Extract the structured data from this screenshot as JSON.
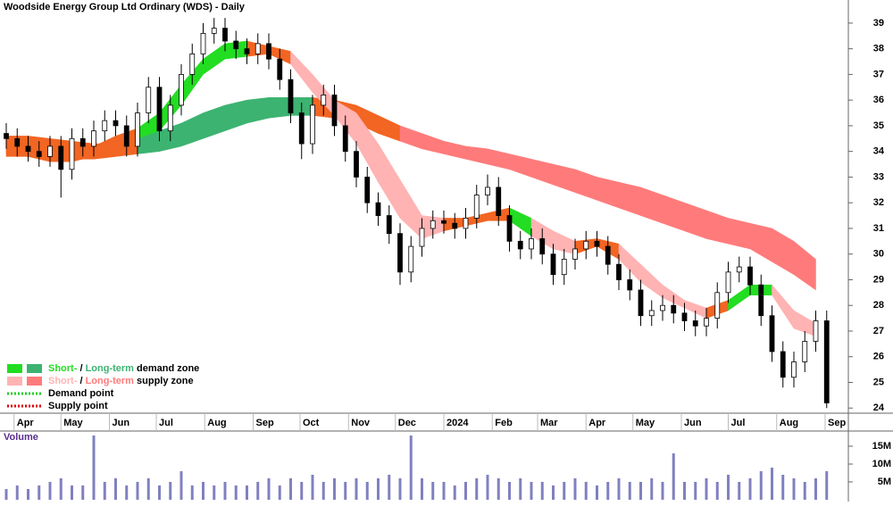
{
  "chart_data": [
    {
      "type": "candlestick",
      "title": "Woodside Energy Group Ltd Ordinary (WDS) - Daily",
      "x": [
        0,
        7,
        14,
        21,
        28,
        35,
        42,
        49,
        56,
        63,
        70,
        77,
        84,
        91,
        98,
        105,
        112,
        119,
        126,
        133,
        140,
        147,
        154,
        161,
        168,
        175,
        182,
        189,
        196,
        203,
        210,
        217,
        224,
        231,
        238,
        245,
        252,
        259,
        266,
        273,
        280,
        287,
        294,
        301,
        308,
        315,
        322,
        329,
        336,
        343,
        350,
        357,
        364,
        371,
        378,
        385,
        392,
        399,
        406,
        413,
        420,
        427,
        434,
        441,
        448,
        455,
        462,
        469,
        476,
        483,
        490,
        497,
        504,
        511,
        518,
        525
      ],
      "open": [
        34.7,
        34.5,
        34.2,
        34.0,
        33.8,
        34.2,
        33.3,
        34.5,
        34.2,
        34.8,
        35.2,
        35.0,
        34.2,
        35.5,
        36.5,
        34.8,
        35.8,
        37.0,
        37.8,
        38.6,
        38.8,
        38.3,
        38.0,
        37.8,
        38.2,
        37.6,
        36.8,
        35.5,
        34.3,
        35.8,
        36.2,
        35.0,
        34.0,
        33.0,
        32.0,
        31.5,
        30.8,
        29.3,
        30.3,
        31.0,
        31.3,
        31.2,
        31.0,
        31.4,
        32.3,
        32.6,
        31.5,
        30.5,
        30.2,
        30.6,
        30.0,
        29.2,
        29.8,
        30.2,
        30.5,
        30.3,
        29.6,
        29.0,
        28.6,
        27.6,
        27.8,
        28.0,
        27.7,
        27.4,
        27.2,
        27.5,
        28.5,
        29.3,
        29.5,
        28.8,
        27.6,
        26.2,
        25.2,
        25.8,
        26.6,
        27.4
      ],
      "high": [
        35.1,
        34.9,
        34.6,
        34.4,
        34.6,
        34.6,
        34.9,
        34.9,
        35.2,
        35.6,
        35.6,
        35.4,
        35.9,
        36.9,
        36.9,
        36.2,
        37.4,
        38.2,
        39.0,
        39.2,
        39.2,
        38.7,
        38.4,
        38.6,
        38.6,
        38.0,
        37.2,
        35.9,
        36.2,
        36.6,
        36.6,
        35.4,
        34.4,
        33.4,
        32.4,
        31.9,
        31.2,
        30.7,
        31.4,
        31.7,
        31.7,
        31.6,
        31.8,
        32.7,
        33.1,
        33.0,
        31.9,
        30.9,
        31.0,
        31.0,
        30.4,
        30.2,
        30.6,
        30.9,
        30.9,
        30.7,
        30.0,
        29.4,
        29.0,
        28.2,
        28.4,
        28.4,
        28.1,
        27.8,
        27.9,
        28.9,
        29.7,
        29.9,
        29.9,
        29.2,
        28.0,
        26.6,
        26.2,
        27.0,
        27.8,
        27.8
      ],
      "low": [
        34.1,
        33.8,
        33.6,
        33.4,
        33.4,
        32.2,
        32.9,
        33.8,
        33.8,
        34.4,
        34.6,
        33.8,
        33.8,
        35.1,
        34.4,
        34.4,
        35.4,
        36.6,
        37.4,
        38.2,
        37.9,
        37.6,
        37.4,
        37.4,
        37.2,
        36.4,
        35.1,
        33.7,
        33.9,
        35.4,
        34.6,
        33.6,
        32.6,
        31.6,
        31.1,
        30.4,
        28.8,
        28.9,
        29.9,
        30.6,
        30.8,
        30.6,
        30.6,
        31.0,
        31.9,
        31.1,
        30.1,
        29.8,
        29.8,
        29.6,
        28.8,
        28.8,
        29.4,
        29.8,
        29.9,
        29.2,
        28.6,
        28.2,
        27.2,
        27.2,
        27.4,
        27.3,
        27.0,
        26.8,
        26.8,
        27.1,
        28.1,
        28.9,
        28.4,
        27.2,
        25.8,
        24.8,
        24.8,
        25.4,
        26.2,
        24.0
      ],
      "close": [
        34.5,
        34.2,
        34.0,
        33.8,
        34.2,
        33.3,
        34.5,
        34.2,
        34.8,
        35.2,
        35.0,
        34.2,
        35.5,
        36.5,
        34.8,
        35.8,
        37.0,
        37.8,
        38.6,
        38.8,
        38.3,
        38.0,
        37.8,
        38.2,
        37.6,
        36.8,
        35.5,
        34.3,
        35.8,
        36.2,
        35.0,
        34.0,
        33.0,
        32.0,
        31.5,
        30.8,
        29.3,
        30.3,
        31.0,
        31.3,
        31.2,
        31.0,
        31.4,
        32.3,
        32.6,
        31.5,
        30.5,
        30.2,
        30.6,
        30.0,
        29.2,
        29.8,
        30.2,
        30.5,
        30.3,
        29.6,
        29.0,
        28.6,
        27.6,
        27.8,
        28.0,
        27.7,
        27.4,
        27.2,
        27.5,
        28.5,
        29.3,
        29.5,
        28.8,
        27.6,
        26.2,
        25.2,
        25.8,
        26.6,
        27.4,
        24.2
      ],
      "band_x": [
        0,
        14,
        28,
        42,
        56,
        70,
        84,
        98,
        112,
        126,
        140,
        154,
        168,
        182,
        196,
        210,
        224,
        238,
        252,
        266,
        280,
        294,
        308,
        322,
        336,
        350,
        364,
        378,
        392,
        406,
        420,
        434,
        448,
        462,
        476,
        490,
        504,
        518
      ],
      "long_lo": [
        33.8,
        33.8,
        33.7,
        33.7,
        33.7,
        33.8,
        33.9,
        34.0,
        34.2,
        34.5,
        34.8,
        35.1,
        35.3,
        35.4,
        35.4,
        35.3,
        35.1,
        34.7,
        34.4,
        34.1,
        33.9,
        33.7,
        33.5,
        33.3,
        33.0,
        32.7,
        32.4,
        32.1,
        31.8,
        31.5,
        31.2,
        30.9,
        30.6,
        30.4,
        30.2,
        29.7,
        29.2,
        28.6
      ],
      "long_hi": [
        34.6,
        34.6,
        34.5,
        34.4,
        34.3,
        34.3,
        34.5,
        34.8,
        35.1,
        35.5,
        35.8,
        36.0,
        36.1,
        36.1,
        36.1,
        36.0,
        35.8,
        35.4,
        35.0,
        34.7,
        34.4,
        34.2,
        34.1,
        33.9,
        33.7,
        33.5,
        33.3,
        33.0,
        32.8,
        32.6,
        32.3,
        32.0,
        31.7,
        31.4,
        31.2,
        31.0,
        30.5,
        29.8
      ],
      "long_colors": [
        "#f26522",
        "#f26522",
        "#f26522",
        "#f26522",
        "#f26522",
        "#f26522",
        "#3cb371",
        "#3cb371",
        "#3cb371",
        "#3cb371",
        "#3cb371",
        "#3cb371",
        "#3cb371",
        "#3cb371",
        "#f26522",
        "#f26522",
        "#f26522",
        "#f26522",
        "#ff7b7b",
        "#ff7b7b",
        "#ff7b7b",
        "#ff7b7b",
        "#ff7b7b",
        "#ff7b7b",
        "#ff7b7b",
        "#ff7b7b",
        "#ff7b7b",
        "#ff7b7b",
        "#ff7b7b",
        "#ff7b7b",
        "#ff7b7b",
        "#ff7b7b",
        "#ff7b7b",
        "#ff7b7b",
        "#ff7b7b",
        "#ff7b7b",
        "#ff7b7b",
        "#ff7b7b"
      ],
      "short_lo": [
        33.9,
        33.8,
        33.6,
        33.6,
        33.8,
        34.2,
        34.5,
        34.8,
        35.8,
        37.0,
        37.6,
        37.7,
        37.8,
        37.4,
        36.3,
        35.4,
        34.3,
        32.8,
        31.4,
        30.6,
        30.9,
        31.1,
        31.3,
        31.3,
        30.7,
        30.2,
        30.0,
        30.3,
        29.8,
        28.9,
        28.3,
        27.9,
        27.5,
        27.8,
        28.4,
        28.4,
        27.1,
        26.8
      ],
      "short_hi": [
        34.6,
        34.4,
        34.2,
        34.0,
        34.2,
        34.6,
        34.9,
        35.5,
        36.6,
        37.6,
        38.2,
        38.3,
        38.1,
        37.9,
        37.0,
        36.0,
        35.5,
        34.3,
        32.9,
        31.5,
        31.4,
        31.4,
        31.6,
        31.8,
        31.4,
        30.9,
        30.5,
        30.6,
        30.4,
        29.6,
        28.8,
        28.2,
        27.9,
        28.2,
        28.8,
        28.8,
        27.8,
        27.3
      ],
      "short_colors": [
        "#f26522",
        "#f26522",
        "#f26522",
        "#f26522",
        "#f26522",
        "#f26522",
        "#22dd22",
        "#22dd22",
        "#22dd22",
        "#22dd22",
        "#22dd22",
        "#f26522",
        "#f26522",
        "#ffb3b3",
        "#ffb3b3",
        "#ffb3b3",
        "#ffb3b3",
        "#ffb3b3",
        "#ffb3b3",
        "#ffb3b3",
        "#f26522",
        "#f26522",
        "#f26522",
        "#22dd22",
        "#ffb3b3",
        "#ffb3b3",
        "#f26522",
        "#f26522",
        "#ffb3b3",
        "#ffb3b3",
        "#ffb3b3",
        "#ffb3b3",
        "#f26522",
        "#22dd22",
        "#22dd22",
        "#ffb3b3",
        "#ffb3b3",
        "#f26522"
      ],
      "xlim": [
        -4,
        536
      ],
      "ylim": [
        23.8,
        39.9
      ],
      "yticks": [
        24,
        25,
        26,
        27,
        28,
        29,
        30,
        31,
        32,
        33,
        34,
        35,
        36,
        37,
        38,
        39
      ],
      "xticks": [
        {
          "value": 5,
          "label": "Apr"
        },
        {
          "value": 35,
          "label": "May"
        },
        {
          "value": 66,
          "label": "Jun"
        },
        {
          "value": 96,
          "label": "Jul"
        },
        {
          "value": 127,
          "label": "Aug"
        },
        {
          "value": 158,
          "label": "Sep"
        },
        {
          "value": 188,
          "label": "Oct"
        },
        {
          "value": 219,
          "label": "Nov"
        },
        {
          "value": 249,
          "label": "Dec"
        },
        {
          "value": 280,
          "label": "2024"
        },
        {
          "value": 311,
          "label": "Feb"
        },
        {
          "value": 340,
          "label": "Mar"
        },
        {
          "value": 371,
          "label": "Apr"
        },
        {
          "value": 401,
          "label": "May"
        },
        {
          "value": 432,
          "label": "Jun"
        },
        {
          "value": 462,
          "label": "Jul"
        },
        {
          "value": 493,
          "label": "Aug"
        },
        {
          "value": 524,
          "label": "Sep"
        }
      ],
      "legend": [
        {
          "swatches": [
            "#22dd22",
            "#3cb371"
          ],
          "parts": [
            {
              "text": "Short-",
              "color": "#22dd22"
            },
            {
              "text": " / ",
              "color": "#000000"
            },
            {
              "text": "Long-term",
              "color": "#3cb371"
            },
            {
              "text": " demand zone",
              "color": "#000000"
            }
          ]
        },
        {
          "swatches": [
            "#ffb3b3",
            "#ff7b7b"
          ],
          "parts": [
            {
              "text": "Short-",
              "color": "#ffb3b3"
            },
            {
              "text": " / ",
              "color": "#000000"
            },
            {
              "text": "Long-term",
              "color": "#ff7b7b"
            },
            {
              "text": " supply zone",
              "color": "#000000"
            }
          ]
        },
        {
          "dotted": "#22cc22",
          "parts": [
            {
              "text": "Demand point",
              "color": "#000000"
            }
          ]
        },
        {
          "dotted": "#dd0000",
          "parts": [
            {
              "text": "Supply point",
              "color": "#000000"
            }
          ]
        }
      ]
    },
    {
      "type": "bar",
      "title": "Volume",
      "color": "#8080c0",
      "x": [
        0,
        7,
        14,
        21,
        28,
        35,
        42,
        49,
        56,
        63,
        70,
        77,
        84,
        91,
        98,
        105,
        112,
        119,
        126,
        133,
        140,
        147,
        154,
        161,
        168,
        175,
        182,
        189,
        196,
        203,
        210,
        217,
        224,
        231,
        238,
        245,
        252,
        259,
        266,
        273,
        280,
        287,
        294,
        301,
        308,
        315,
        322,
        329,
        336,
        343,
        350,
        357,
        364,
        371,
        378,
        385,
        392,
        399,
        406,
        413,
        420,
        427,
        434,
        441,
        448,
        455,
        462,
        469,
        476,
        483,
        490,
        497,
        504,
        511,
        518,
        525
      ],
      "values": [
        3,
        4,
        3,
        4,
        5,
        6,
        4,
        4,
        18,
        5,
        6,
        4,
        5,
        6,
        4,
        5,
        8,
        4,
        5,
        4,
        5,
        4,
        4,
        5,
        6,
        4,
        6,
        5,
        7,
        5,
        6,
        5,
        6,
        5,
        6,
        7,
        6,
        18,
        6,
        5,
        5,
        4,
        5,
        6,
        7,
        6,
        5,
        6,
        5,
        5,
        4,
        5,
        6,
        5,
        4,
        5,
        6,
        5,
        5,
        6,
        5,
        13,
        5,
        5,
        6,
        5,
        7,
        5,
        6,
        8,
        9,
        7,
        6,
        5,
        6,
        8
      ],
      "xlim": [
        -4,
        536
      ],
      "ylim": [
        0,
        19
      ],
      "yticks": [
        {
          "value": 5,
          "label": "5M"
        },
        {
          "value": 10,
          "label": "10M"
        },
        {
          "value": 15,
          "label": "15M"
        }
      ]
    }
  ]
}
